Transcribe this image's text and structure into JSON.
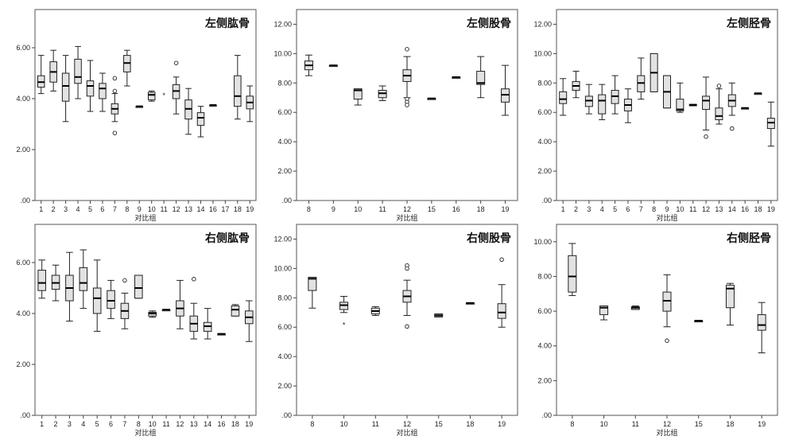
{
  "chart_data": [
    {
      "type": "box",
      "title": "左侧肱骨",
      "xlabel": "对比组",
      "ylabel": "",
      "ylim": [
        0,
        7.5
      ],
      "yticks": [
        ".00",
        "2.00",
        "4.00",
        "6.00"
      ],
      "ytick_values": [
        0,
        2,
        4,
        6
      ],
      "categories": [
        "1",
        "2",
        "3",
        "4",
        "5",
        "6",
        "7",
        "8",
        "9",
        "10",
        "11",
        "12",
        "13",
        "14",
        "16",
        "17",
        "18",
        "19"
      ],
      "boxes": [
        {
          "g": "1",
          "min": 4.2,
          "q1": 4.45,
          "med": 4.65,
          "q3": 4.9,
          "max": 5.7,
          "outliers": []
        },
        {
          "g": "2",
          "min": 4.3,
          "q1": 4.65,
          "med": 5.05,
          "q3": 5.45,
          "max": 5.9,
          "outliers": []
        },
        {
          "g": "3",
          "min": 3.1,
          "q1": 3.9,
          "med": 4.5,
          "q3": 5.0,
          "max": 5.7,
          "outliers": []
        },
        {
          "g": "4",
          "min": 4.0,
          "q1": 4.6,
          "med": 4.85,
          "q3": 5.55,
          "max": 6.05,
          "outliers": []
        },
        {
          "g": "5",
          "min": 3.5,
          "q1": 4.1,
          "med": 4.5,
          "q3": 4.7,
          "max": 5.5,
          "outliers": []
        },
        {
          "g": "6",
          "min": 3.5,
          "q1": 4.0,
          "med": 4.4,
          "q3": 4.6,
          "max": 5.0,
          "outliers": []
        },
        {
          "g": "7",
          "min": 3.1,
          "q1": 3.4,
          "med": 3.6,
          "q3": 3.8,
          "max": 4.2,
          "outliers": [
            4.8,
            4.3,
            2.65
          ]
        },
        {
          "g": "8",
          "min": 4.5,
          "q1": 5.05,
          "med": 5.4,
          "q3": 5.7,
          "max": 5.9,
          "outliers": []
        },
        {
          "g": "9",
          "min": 3.7,
          "q1": 3.7,
          "med": 3.7,
          "q3": 3.7,
          "max": 3.7,
          "outliers": []
        },
        {
          "g": "10",
          "min": 3.9,
          "q1": 3.95,
          "med": 4.15,
          "q3": 4.25,
          "max": 4.3,
          "outliers": []
        },
        {
          "g": "11",
          "min": null,
          "q1": null,
          "med": null,
          "q3": null,
          "max": null,
          "outliers": [],
          "stars": [
            4.15
          ]
        },
        {
          "g": "12",
          "min": 3.4,
          "q1": 4.0,
          "med": 4.3,
          "q3": 4.55,
          "max": 4.85,
          "outliers": [
            5.4
          ]
        },
        {
          "g": "13",
          "min": 2.6,
          "q1": 3.2,
          "med": 3.6,
          "q3": 3.95,
          "max": 4.4,
          "outliers": []
        },
        {
          "g": "14",
          "min": 2.5,
          "q1": 2.95,
          "med": 3.25,
          "q3": 3.45,
          "max": 3.7,
          "outliers": []
        },
        {
          "g": "16",
          "min": 3.75,
          "q1": 3.75,
          "med": 3.75,
          "q3": 3.75,
          "max": 3.75,
          "outliers": []
        },
        {
          "g": "17",
          "min": null,
          "q1": null,
          "med": null,
          "q3": null,
          "max": null,
          "outliers": []
        },
        {
          "g": "18",
          "min": 3.2,
          "q1": 3.7,
          "med": 4.1,
          "q3": 4.9,
          "max": 5.7,
          "outliers": []
        },
        {
          "g": "19",
          "min": 3.1,
          "q1": 3.6,
          "med": 3.85,
          "q3": 4.1,
          "max": 4.5,
          "outliers": []
        }
      ]
    },
    {
      "type": "box",
      "title": "左侧股骨",
      "xlabel": "对比组",
      "ylabel": "",
      "ylim": [
        0,
        13
      ],
      "yticks": [
        ".00",
        "2.00",
        "4.00",
        "6.00",
        "8.00",
        "10.00",
        "12.00"
      ],
      "ytick_values": [
        0,
        2,
        4,
        6,
        8,
        10,
        12
      ],
      "categories": [
        "8",
        "9",
        "10",
        "11",
        "12",
        "15",
        "16",
        "18",
        "19"
      ],
      "boxes": [
        {
          "g": "8",
          "min": 8.5,
          "q1": 8.9,
          "med": 9.2,
          "q3": 9.5,
          "max": 9.9,
          "outliers": []
        },
        {
          "g": "9",
          "min": 9.2,
          "q1": 9.2,
          "med": 9.2,
          "q3": 9.2,
          "max": 9.2,
          "outliers": []
        },
        {
          "g": "10",
          "min": 6.5,
          "q1": 6.9,
          "med": 7.5,
          "q3": 7.6,
          "max": 7.6,
          "outliers": []
        },
        {
          "g": "11",
          "min": 6.8,
          "q1": 7.0,
          "med": 7.3,
          "q3": 7.5,
          "max": 7.8,
          "outliers": []
        },
        {
          "g": "12",
          "min": 7.0,
          "q1": 8.1,
          "med": 8.5,
          "q3": 8.9,
          "max": 9.8,
          "outliers": [
            10.3,
            6.9,
            6.7,
            6.5
          ]
        },
        {
          "g": "15",
          "min": 6.95,
          "q1": 6.95,
          "med": 6.95,
          "q3": 6.95,
          "max": 6.95,
          "outliers": []
        },
        {
          "g": "16",
          "min": 8.4,
          "q1": 8.4,
          "med": 8.4,
          "q3": 8.4,
          "max": 8.4,
          "outliers": []
        },
        {
          "g": "18",
          "min": 7.0,
          "q1": 7.9,
          "med": 8.0,
          "q3": 8.8,
          "max": 9.8,
          "outliers": []
        },
        {
          "g": "19",
          "min": 5.8,
          "q1": 6.7,
          "med": 7.2,
          "q3": 7.6,
          "max": 9.2,
          "outliers": []
        }
      ]
    },
    {
      "type": "box",
      "title": "左侧胫骨",
      "xlabel": "对比组",
      "ylabel": "",
      "ylim": [
        0,
        13
      ],
      "yticks": [
        ".00",
        "2.00",
        "4.00",
        "6.00",
        "8.00",
        "10.00",
        "12.00"
      ],
      "ytick_values": [
        0,
        2,
        4,
        6,
        8,
        10,
        12
      ],
      "categories": [
        "1",
        "2",
        "3",
        "4",
        "5",
        "6",
        "7",
        "8",
        "9",
        "10",
        "11",
        "12",
        "13",
        "14",
        "16",
        "18",
        "19"
      ],
      "boxes": [
        {
          "g": "1",
          "min": 5.8,
          "q1": 6.6,
          "med": 6.9,
          "q3": 7.4,
          "max": 8.3,
          "outliers": []
        },
        {
          "g": "2",
          "min": 7.0,
          "q1": 7.5,
          "med": 7.8,
          "q3": 8.1,
          "max": 8.8,
          "outliers": []
        },
        {
          "g": "3",
          "min": 5.9,
          "q1": 6.4,
          "med": 6.8,
          "q3": 7.1,
          "max": 7.9,
          "outliers": []
        },
        {
          "g": "4",
          "min": 5.5,
          "q1": 5.9,
          "med": 6.8,
          "q3": 7.2,
          "max": 7.9,
          "outliers": []
        },
        {
          "g": "5",
          "min": 5.9,
          "q1": 6.6,
          "med": 7.1,
          "q3": 7.5,
          "max": 8.5,
          "outliers": []
        },
        {
          "g": "6",
          "min": 5.3,
          "q1": 6.1,
          "med": 6.5,
          "q3": 6.9,
          "max": 7.6,
          "outliers": []
        },
        {
          "g": "7",
          "min": 6.9,
          "q1": 7.4,
          "med": 8.0,
          "q3": 8.5,
          "max": 9.7,
          "outliers": []
        },
        {
          "g": "8",
          "min": 7.4,
          "q1": 7.4,
          "med": 8.7,
          "q3": 10.0,
          "max": 10.0,
          "outliers": []
        },
        {
          "g": "9",
          "min": 6.3,
          "q1": 6.3,
          "med": 7.4,
          "q3": 8.5,
          "max": 8.5,
          "outliers": []
        },
        {
          "g": "10",
          "min": 6.0,
          "q1": 6.1,
          "med": 6.2,
          "q3": 6.9,
          "max": 8.0,
          "outliers": []
        },
        {
          "g": "11",
          "min": 6.45,
          "q1": 6.45,
          "med": 6.5,
          "q3": 6.55,
          "max": 6.55,
          "outliers": []
        },
        {
          "g": "12",
          "min": 4.8,
          "q1": 6.2,
          "med": 6.8,
          "q3": 7.1,
          "max": 8.4,
          "outliers": [
            4.35
          ]
        },
        {
          "g": "13",
          "min": 5.2,
          "q1": 5.5,
          "med": 5.75,
          "q3": 6.3,
          "max": 7.6,
          "outliers": [
            7.8
          ]
        },
        {
          "g": "14",
          "min": 5.8,
          "q1": 6.4,
          "med": 6.8,
          "q3": 7.2,
          "max": 8.0,
          "outliers": [
            4.9
          ]
        },
        {
          "g": "16",
          "min": 6.3,
          "q1": 6.3,
          "med": 6.3,
          "q3": 6.3,
          "max": 6.3,
          "outliers": []
        },
        {
          "g": "18",
          "min": 7.3,
          "q1": 7.3,
          "med": 7.3,
          "q3": 7.3,
          "max": 7.3,
          "outliers": []
        },
        {
          "g": "19",
          "min": 3.7,
          "q1": 4.9,
          "med": 5.3,
          "q3": 5.6,
          "max": 6.7,
          "outliers": []
        }
      ]
    },
    {
      "type": "box",
      "title": "右侧肱骨",
      "xlabel": "对比组",
      "ylabel": "",
      "ylim": [
        0,
        7.5
      ],
      "yticks": [
        ".00",
        "2.00",
        "4.00",
        "6.00"
      ],
      "ytick_values": [
        0,
        2,
        4,
        6
      ],
      "categories": [
        "1",
        "2",
        "3",
        "4",
        "5",
        "6",
        "7",
        "8",
        "10",
        "11",
        "12",
        "13",
        "14",
        "16",
        "18",
        "19"
      ],
      "boxes": [
        {
          "g": "1",
          "min": 4.6,
          "q1": 4.9,
          "med": 5.2,
          "q3": 5.7,
          "max": 6.1,
          "outliers": []
        },
        {
          "g": "2",
          "min": 4.5,
          "q1": 4.95,
          "med": 5.2,
          "q3": 5.5,
          "max": 5.9,
          "outliers": []
        },
        {
          "g": "3",
          "min": 3.7,
          "q1": 4.5,
          "med": 5.0,
          "q3": 5.5,
          "max": 6.4,
          "outliers": []
        },
        {
          "g": "4",
          "min": 4.2,
          "q1": 4.9,
          "med": 5.2,
          "q3": 5.8,
          "max": 6.5,
          "outliers": []
        },
        {
          "g": "5",
          "min": 3.3,
          "q1": 4.0,
          "med": 4.6,
          "q3": 5.0,
          "max": 6.1,
          "outliers": []
        },
        {
          "g": "6",
          "min": 3.8,
          "q1": 4.2,
          "med": 4.5,
          "q3": 4.9,
          "max": 5.3,
          "outliers": []
        },
        {
          "g": "7",
          "min": 3.4,
          "q1": 3.8,
          "med": 4.1,
          "q3": 4.4,
          "max": 4.8,
          "outliers": [
            5.3
          ]
        },
        {
          "g": "8",
          "min": 4.6,
          "q1": 4.6,
          "med": 5.0,
          "q3": 5.5,
          "max": 5.5,
          "outliers": []
        },
        {
          "g": "10",
          "min": 3.85,
          "q1": 3.9,
          "med": 4.0,
          "q3": 4.05,
          "max": 4.1,
          "outliers": []
        },
        {
          "g": "11",
          "min": 4.15,
          "q1": 4.15,
          "med": 4.15,
          "q3": 4.15,
          "max": 4.15,
          "outliers": []
        },
        {
          "g": "12",
          "min": 3.4,
          "q1": 3.9,
          "med": 4.2,
          "q3": 4.5,
          "max": 5.3,
          "outliers": []
        },
        {
          "g": "13",
          "min": 3.0,
          "q1": 3.3,
          "med": 3.6,
          "q3": 3.9,
          "max": 4.4,
          "outliers": [
            5.35
          ]
        },
        {
          "g": "14",
          "min": 3.0,
          "q1": 3.3,
          "med": 3.5,
          "q3": 3.65,
          "max": 4.2,
          "outliers": []
        },
        {
          "g": "16",
          "min": 3.2,
          "q1": 3.2,
          "med": 3.2,
          "q3": 3.2,
          "max": 3.2,
          "outliers": []
        },
        {
          "g": "18",
          "min": 3.9,
          "q1": 3.9,
          "med": 4.15,
          "q3": 4.3,
          "max": 4.35,
          "outliers": []
        },
        {
          "g": "19",
          "min": 2.9,
          "q1": 3.6,
          "med": 3.85,
          "q3": 4.1,
          "max": 4.5,
          "outliers": []
        }
      ]
    },
    {
      "type": "box",
      "title": "右侧股骨",
      "xlabel": "对比组",
      "ylabel": "",
      "ylim": [
        0,
        13
      ],
      "yticks": [
        ".00",
        "2.00",
        "4.00",
        "6.00",
        "8.00",
        "10.00",
        "12.00"
      ],
      "ytick_values": [
        0,
        2,
        4,
        6,
        8,
        10,
        12
      ],
      "categories": [
        "8",
        "10",
        "11",
        "12",
        "15",
        "18",
        "19"
      ],
      "boxes": [
        {
          "g": "8",
          "min": 7.3,
          "q1": 8.5,
          "med": 9.3,
          "q3": 9.4,
          "max": 9.4,
          "outliers": []
        },
        {
          "g": "10",
          "min": 7.0,
          "q1": 7.2,
          "med": 7.5,
          "q3": 7.7,
          "max": 8.1,
          "outliers": [],
          "stars": [
            6.2
          ]
        },
        {
          "g": "11",
          "min": 6.8,
          "q1": 6.9,
          "med": 7.1,
          "q3": 7.3,
          "max": 7.4,
          "outliers": []
        },
        {
          "g": "12",
          "min": 6.8,
          "q1": 7.7,
          "med": 8.1,
          "q3": 8.5,
          "max": 9.2,
          "outliers": [
            10.2,
            10.0,
            6.05
          ]
        },
        {
          "g": "15",
          "min": 6.7,
          "q1": 6.7,
          "med": 6.8,
          "q3": 6.9,
          "max": 6.9,
          "outliers": []
        },
        {
          "g": "18",
          "min": 7.65,
          "q1": 7.65,
          "med": 7.65,
          "q3": 7.65,
          "max": 7.65,
          "outliers": []
        },
        {
          "g": "19",
          "min": 6.0,
          "q1": 6.6,
          "med": 7.0,
          "q3": 7.6,
          "max": 8.9,
          "outliers": [
            10.6
          ]
        }
      ]
    },
    {
      "type": "box",
      "title": "右侧胫骨",
      "xlabel": "对比组",
      "ylabel": "",
      "ylim": [
        0,
        11
      ],
      "yticks": [
        ".00",
        "2.00",
        "4.00",
        "6.00",
        "8.00",
        "10.00"
      ],
      "ytick_values": [
        0,
        2,
        4,
        6,
        8,
        10
      ],
      "categories": [
        "8",
        "10",
        "11",
        "12",
        "15",
        "18",
        "19"
      ],
      "boxes": [
        {
          "g": "8",
          "min": 6.9,
          "q1": 7.1,
          "med": 8.0,
          "q3": 9.2,
          "max": 9.9,
          "outliers": []
        },
        {
          "g": "10",
          "min": 5.5,
          "q1": 5.8,
          "med": 6.2,
          "q3": 6.3,
          "max": 6.3,
          "outliers": []
        },
        {
          "g": "11",
          "min": 6.1,
          "q1": 6.1,
          "med": 6.2,
          "q3": 6.25,
          "max": 6.3,
          "outliers": []
        },
        {
          "g": "12",
          "min": 5.1,
          "q1": 6.0,
          "med": 6.6,
          "q3": 7.1,
          "max": 8.1,
          "outliers": [
            4.3
          ]
        },
        {
          "g": "15",
          "min": 5.45,
          "q1": 5.45,
          "med": 5.45,
          "q3": 5.45,
          "max": 5.45,
          "outliers": []
        },
        {
          "g": "18",
          "min": 5.2,
          "q1": 6.2,
          "med": 7.3,
          "q3": 7.5,
          "max": 7.6,
          "outliers": []
        },
        {
          "g": "19",
          "min": 3.6,
          "q1": 4.9,
          "med": 5.2,
          "q3": 5.8,
          "max": 6.5,
          "outliers": []
        }
      ]
    }
  ]
}
